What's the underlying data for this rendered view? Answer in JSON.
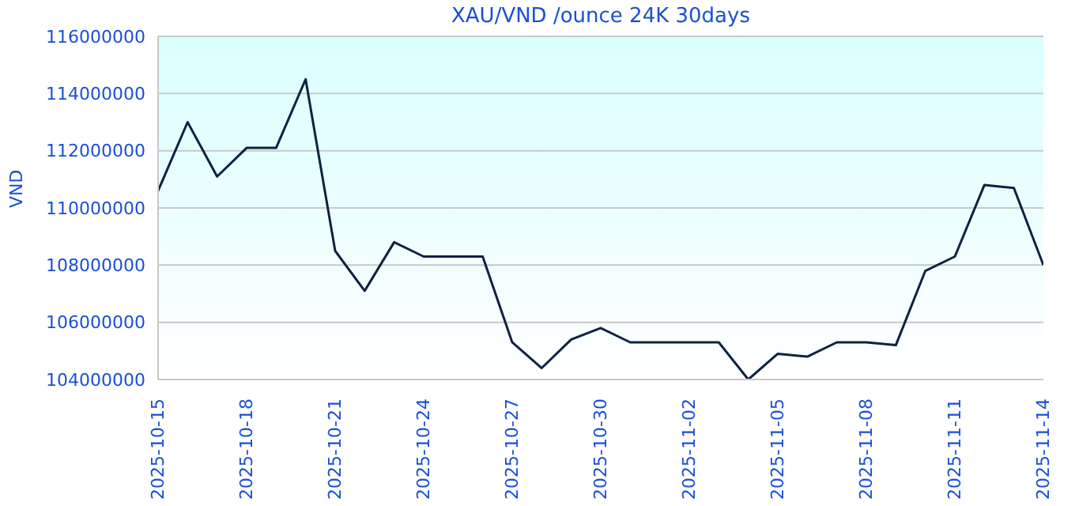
{
  "chart_data": {
    "type": "line",
    "title": "XAU/VND /ounce 24K 30days",
    "ylabel": "VND",
    "x": [
      "2025-10-15",
      "2025-10-16",
      "2025-10-17",
      "2025-10-18",
      "2025-10-19",
      "2025-10-20",
      "2025-10-21",
      "2025-10-22",
      "2025-10-23",
      "2025-10-24",
      "2025-10-25",
      "2025-10-26",
      "2025-10-27",
      "2025-10-28",
      "2025-10-29",
      "2025-10-30",
      "2025-10-31",
      "2025-11-01",
      "2025-11-02",
      "2025-11-03",
      "2025-11-04",
      "2025-11-05",
      "2025-11-06",
      "2025-11-07",
      "2025-11-08",
      "2025-11-09",
      "2025-11-10",
      "2025-11-11",
      "2025-11-12",
      "2025-11-13",
      "2025-11-14"
    ],
    "series": [
      {
        "color": "#0d2240",
        "values": [
          110600000,
          113000000,
          111100000,
          112100000,
          112100000,
          114500000,
          108500000,
          107100000,
          108800000,
          108300000,
          108300000,
          108300000,
          105300000,
          104400000,
          105400000,
          105800000,
          105300000,
          105300000,
          105300000,
          105300000,
          104000000,
          104900000,
          104800000,
          105300000,
          105300000,
          105200000,
          107800000,
          108300000,
          110800000,
          110700000,
          108000000
        ]
      }
    ],
    "xlim": [
      "2025-10-15",
      "2025-11-14"
    ],
    "xticks": [
      "2025-10-15",
      "2025-10-18",
      "2025-10-21",
      "2025-10-24",
      "2025-10-27",
      "2025-10-30",
      "2025-11-02",
      "2025-11-05",
      "2025-11-08",
      "2025-11-11",
      "2025-11-14"
    ],
    "ylim": [
      104000000,
      116000000
    ],
    "yticks": [
      104000000,
      106000000,
      108000000,
      110000000,
      112000000,
      114000000,
      116000000
    ],
    "grid": "y",
    "legend": false,
    "marker": "none",
    "line_style": "solid"
  }
}
